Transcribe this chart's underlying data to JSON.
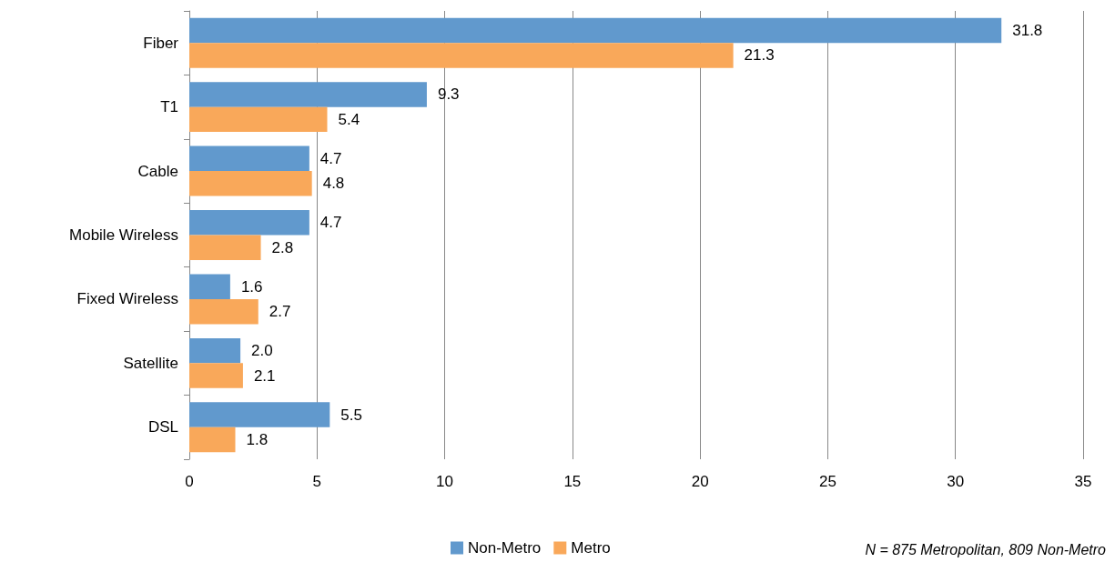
{
  "chart_data": {
    "type": "bar",
    "orientation": "horizontal",
    "categories": [
      "Fiber",
      "T1",
      "Cable",
      "Mobile Wireless",
      "Fixed Wireless",
      "Satellite",
      "DSL"
    ],
    "series": [
      {
        "name": "Non-Metro",
        "color": "#6199cd",
        "values": [
          31.8,
          9.3,
          4.7,
          4.7,
          1.6,
          2.0,
          5.5
        ],
        "value_labels": [
          "31.8",
          "9.3",
          "4.7",
          "4.7",
          "1.6",
          "2.0",
          "5.5"
        ]
      },
      {
        "name": "Metro",
        "color": "#f9a85a",
        "values": [
          21.3,
          5.4,
          4.8,
          2.8,
          2.7,
          2.1,
          1.8
        ],
        "value_labels": [
          "21.3",
          "5.4",
          "4.8",
          "2.8",
          "2.7",
          "2.1",
          "1.8"
        ]
      }
    ],
    "xlim": [
      0,
      35
    ],
    "xticks": [
      0,
      5,
      10,
      15,
      20,
      25,
      30,
      35
    ],
    "grid": "x",
    "legend": "bottom",
    "annotations": [
      "N = 875 Metropolitan, 809 Non-Metro"
    ]
  }
}
